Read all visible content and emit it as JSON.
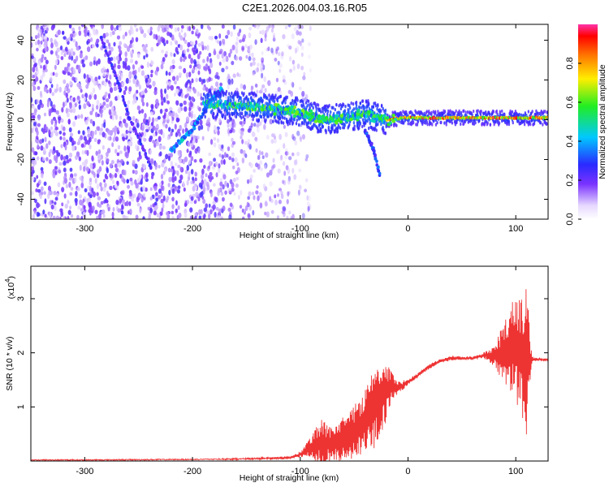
{
  "figure": {
    "title": "C2E1.2026.004.03.16.R05"
  },
  "chart_data": [
    {
      "type": "heatmap",
      "title": "",
      "xlabel": "Height of straight line (km)",
      "ylabel": "Frequency (Hz)",
      "xlim": [
        -350,
        130
      ],
      "ylim": [
        -50,
        48
      ],
      "xticks": [
        -300,
        -200,
        -100,
        0,
        100
      ],
      "yticks": [
        -40,
        -20,
        0,
        20,
        40
      ],
      "colorbar": {
        "label": "Normalized spectral amplitude",
        "range": [
          0,
          1
        ],
        "ticks": [
          "0.0",
          "0.2",
          "0.4",
          "0.6",
          "0.8"
        ],
        "tick_values": [
          0.0,
          0.2,
          0.4,
          0.6,
          0.8
        ]
      },
      "features": [
        {
          "name": "noise-field",
          "x_range": [
            -350,
            -100
          ],
          "f_range": [
            -50,
            48
          ],
          "amplitude": 0.15
        },
        {
          "name": "descending-streak",
          "points": [
            [
              -285,
              42
            ],
            [
              -270,
              20
            ],
            [
              -258,
              0
            ],
            [
              -245,
              -15
            ],
            [
              -238,
              -25
            ]
          ],
          "amplitude": 0.25
        },
        {
          "name": "rising-streak",
          "points": [
            [
              -220,
              -15
            ],
            [
              -200,
              -5
            ],
            [
              -185,
              8
            ],
            [
              -172,
              16
            ]
          ],
          "amplitude": 0.4
        },
        {
          "name": "lower-branch",
          "points": [
            [
              -40,
              -5
            ],
            [
              -32,
              -15
            ],
            [
              -26,
              -28
            ]
          ],
          "amplitude": 0.3
        },
        {
          "name": "main-band",
          "points": [
            [
              -190,
              8
            ],
            [
              -150,
              7
            ],
            [
              -120,
              5
            ],
            [
              -100,
              4
            ],
            [
              -80,
              0
            ],
            [
              -60,
              1
            ],
            [
              -40,
              3
            ],
            [
              -20,
              0
            ],
            [
              0,
              1
            ],
            [
              20,
              1
            ],
            [
              60,
              1
            ],
            [
              100,
              1
            ],
            [
              130,
              1
            ]
          ],
          "amplitude": 0.85
        }
      ]
    },
    {
      "type": "line",
      "title": "",
      "xlabel": "Height of straight line (km)",
      "ylabel": "SNR (10 * v/v)",
      "y_scale_label": "(x10",
      "y_scale_exponent": "4",
      "xlim": [
        -350,
        130
      ],
      "ylim": [
        0,
        3.6
      ],
      "xticks": [
        -300,
        -200,
        -100,
        0,
        100
      ],
      "yticks": [
        1,
        2,
        3
      ],
      "series": [
        {
          "name": "SNR",
          "color": "#ee3333",
          "x": [
            -350,
            -300,
            -200,
            -150,
            -110,
            -100,
            -90,
            -80,
            -70,
            -60,
            -50,
            -40,
            -30,
            -20,
            -15,
            -10,
            0,
            10,
            20,
            30,
            40,
            50,
            60,
            70,
            80,
            90,
            100,
            105,
            110,
            115,
            120,
            130
          ],
          "y": [
            0.02,
            0.02,
            0.03,
            0.04,
            0.06,
            0.12,
            0.25,
            0.35,
            0.3,
            0.45,
            0.55,
            0.75,
            1.0,
            1.3,
            1.4,
            1.35,
            1.45,
            1.6,
            1.75,
            1.85,
            1.9,
            1.9,
            1.9,
            1.95,
            1.95,
            2.0,
            2.1,
            2.0,
            1.8,
            1.88,
            1.88,
            1.87
          ],
          "spread": [
            0,
            0,
            0,
            0.01,
            0.02,
            0.05,
            0.2,
            0.45,
            0.3,
            0.45,
            0.5,
            0.6,
            0.75,
            0.55,
            0.25,
            0.12,
            0.05,
            0.04,
            0.04,
            0.04,
            0.04,
            0.03,
            0.03,
            0.05,
            0.2,
            0.6,
            1.0,
            1.2,
            1.4,
            0.05,
            0.03,
            0.02
          ]
        }
      ]
    }
  ]
}
